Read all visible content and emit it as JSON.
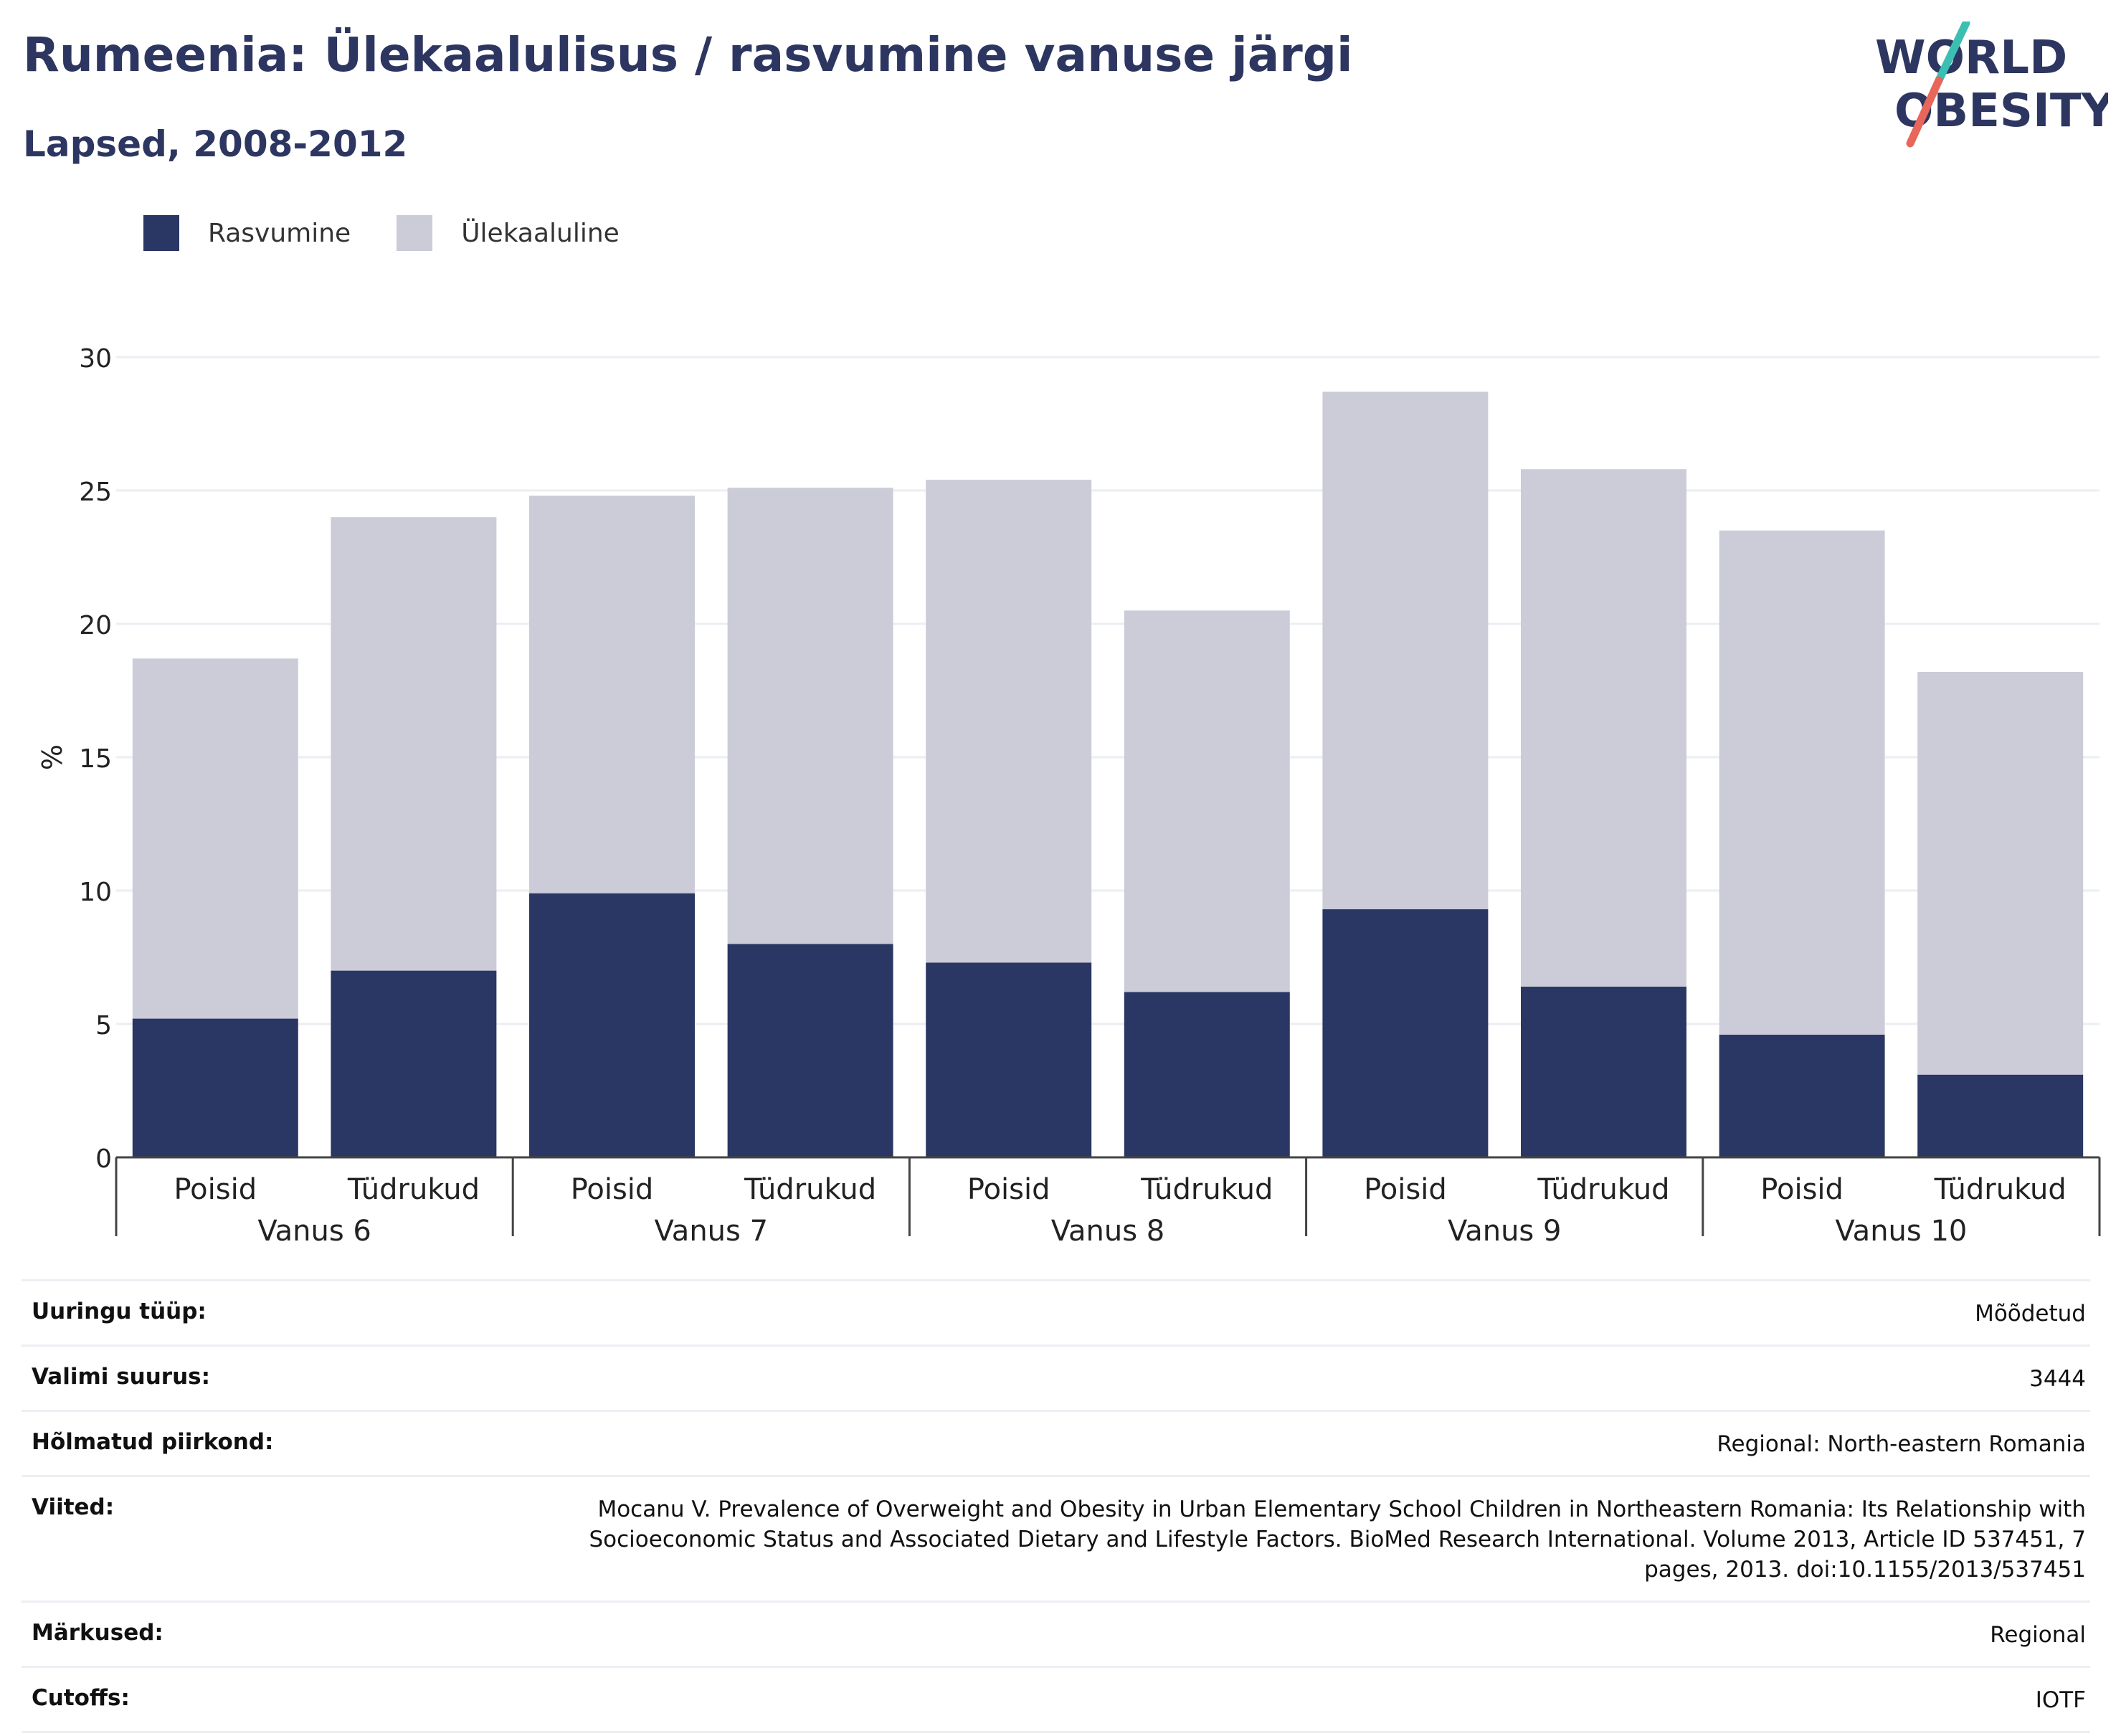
{
  "header": {
    "title": "Rumeenia: Ülekaalulisus / rasvumine vanuse järgi",
    "subtitle": "Lapsed, 2008-2012"
  },
  "logo": {
    "line1": "WORLD",
    "line2": "OBESITY"
  },
  "colors": {
    "obesity": "#2a3663",
    "overweight": "#cbccd8",
    "text": "#2d3660",
    "grid": "#eceef4",
    "logo_teal": "#3bbfb3",
    "logo_red": "#e8665a"
  },
  "chart_data": {
    "type": "bar",
    "stacked": true,
    "title": "",
    "ylabel": "%",
    "ylim": [
      0,
      30
    ],
    "yticks": [
      0,
      5,
      10,
      15,
      20,
      25,
      30
    ],
    "grid": true,
    "legend_position": "top-left",
    "groups": [
      "Vanus 6",
      "Vanus 7",
      "Vanus 8",
      "Vanus 9",
      "Vanus 10"
    ],
    "subcategories": [
      "Poisid",
      "Tüdrukud"
    ],
    "series": [
      {
        "name": "Rasvumine",
        "color": "#2a3663",
        "values": [
          5.2,
          7.0,
          9.9,
          8.0,
          7.3,
          6.2,
          9.3,
          6.4,
          4.6,
          3.1
        ]
      },
      {
        "name": "Ülekaaluline",
        "color": "#cbccd8",
        "values": [
          13.5,
          17.0,
          14.9,
          17.1,
          18.1,
          14.3,
          19.4,
          19.4,
          18.9,
          15.1
        ]
      }
    ]
  },
  "info": [
    {
      "label": "Uuringu tüüp:",
      "value": "Mõõdetud"
    },
    {
      "label": "Valimi suurus:",
      "value": "3444"
    },
    {
      "label": "Hõlmatud piirkond:",
      "value": "Regional: North-eastern Romania"
    },
    {
      "label": "Viited:",
      "value": "Mocanu V. Prevalence of Overweight and Obesity in Urban Elementary School Children in Northeastern Romania: Its Relationship with Socioeconomic Status and Associated Dietary and Lifestyle Factors. BioMed Research International. Volume 2013, Article ID 537451, 7 pages, 2013. doi:10.1155/2013/537451"
    },
    {
      "label": "Märkused:",
      "value": "Regional"
    },
    {
      "label": "Cutoffs:",
      "value": "IOTF"
    }
  ]
}
